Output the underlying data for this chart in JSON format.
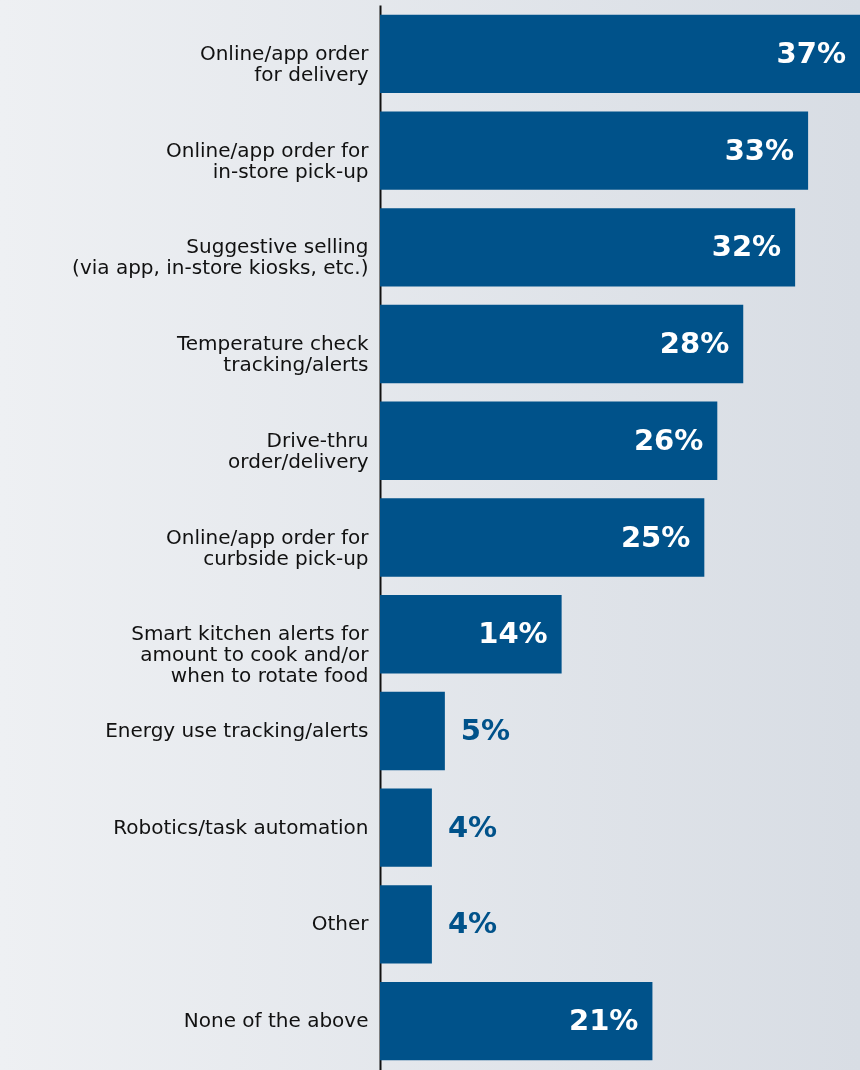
{
  "chart_data": {
    "type": "bar",
    "orientation": "horizontal",
    "categories": [
      "Online/app order\nfor delivery",
      "Online/app order for\nin-store pick-up",
      "Suggestive selling\n(via app, in-store kiosks, etc.)",
      "Temperature check\ntracking/alerts",
      "Drive-thru\norder/delivery",
      "Online/app order for\ncurbside pick-up",
      "Smart kitchen alerts for\namount to cook and/or\nwhen to rotate food",
      "Energy use tracking/alerts",
      "Robotics/task automation",
      "Other",
      "None of the above"
    ],
    "values": [
      37,
      33,
      32,
      28,
      26,
      25,
      14,
      5,
      4,
      4,
      21
    ],
    "value_labels": [
      "37%",
      "33%",
      "32%",
      "28%",
      "26%",
      "25%",
      "14%",
      "5%",
      "4%",
      "4%",
      "21%"
    ],
    "color": "#00528a"
  }
}
